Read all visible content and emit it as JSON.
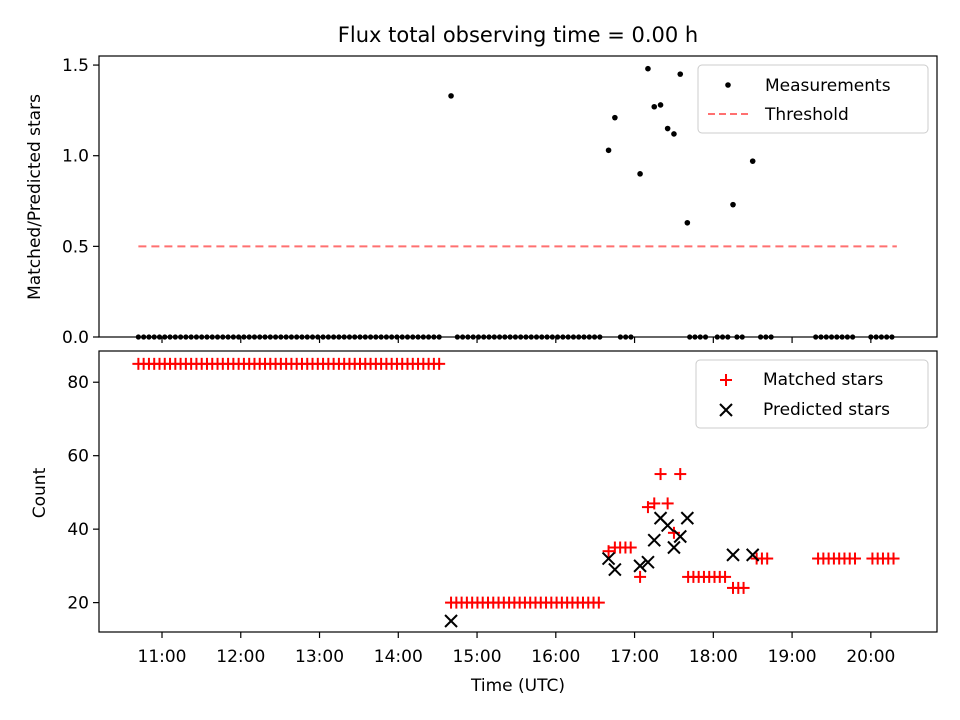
{
  "chart_data": [
    {
      "type": "scatter",
      "title": "Flux total observing time = 0.00 h",
      "ylabel": "Matched/Predicted stars",
      "ylim": [
        0,
        1.55
      ],
      "yticks": [
        0.0,
        0.5,
        1.0,
        1.5
      ],
      "ytick_labels": [
        "0.0",
        "0.5",
        "1.0",
        "1.5"
      ],
      "xlim": [
        10.2,
        20.84
      ],
      "legend": {
        "placement": "top-right",
        "entries": [
          {
            "label": "Measurements",
            "marker": "dot",
            "color": "#000000"
          },
          {
            "label": "Threshold",
            "marker": "dashed-line",
            "color": "#ff7070"
          }
        ]
      },
      "threshold": {
        "name": "Threshold",
        "value": 0.5,
        "x_start": 10.7,
        "x_end": 20.33,
        "color": "#ff7070"
      },
      "series": [
        {
          "name": "Measurements",
          "color": "#000000",
          "zero_ranges": [
            [
              10.7,
              14.58
            ],
            [
              14.75,
              16.6
            ],
            [
              16.82,
              16.98
            ],
            [
              17.7,
              17.95
            ],
            [
              18.05,
              18.2
            ],
            [
              18.3,
              18.37
            ],
            [
              18.6,
              18.75
            ],
            [
              19.3,
              19.82
            ],
            [
              20.0,
              20.33
            ]
          ],
          "zero_step": 0.067,
          "points": [
            [
              14.67,
              1.33
            ],
            [
              16.67,
              1.03
            ],
            [
              16.75,
              1.21
            ],
            [
              17.07,
              0.9
            ],
            [
              17.17,
              1.48
            ],
            [
              17.25,
              1.27
            ],
            [
              17.33,
              1.28
            ],
            [
              17.42,
              1.15
            ],
            [
              17.5,
              1.12
            ],
            [
              17.58,
              1.45
            ],
            [
              17.67,
              0.63
            ],
            [
              18.25,
              0.73
            ],
            [
              18.5,
              0.97
            ]
          ]
        }
      ]
    },
    {
      "type": "scatter",
      "xlabel": "Time (UTC)",
      "ylabel": "Count",
      "ylim": [
        12,
        88.5
      ],
      "yticks": [
        20,
        40,
        60,
        80
      ],
      "ytick_labels": [
        "20",
        "40",
        "60",
        "80"
      ],
      "xlim": [
        10.2,
        20.84
      ],
      "xticks": [
        11,
        12,
        13,
        14,
        15,
        16,
        17,
        18,
        19,
        20
      ],
      "xtick_labels": [
        "11:00",
        "12:00",
        "13:00",
        "14:00",
        "15:00",
        "16:00",
        "17:00",
        "18:00",
        "19:00",
        "20:00"
      ],
      "legend": {
        "placement": "top-right",
        "entries": [
          {
            "label": "Matched stars",
            "marker": "plus",
            "color": "#ff0000"
          },
          {
            "label": "Predicted stars",
            "marker": "x",
            "color": "#000000"
          }
        ]
      },
      "series": [
        {
          "name": "Matched stars",
          "color": "#ff0000",
          "marker": "plus",
          "ranges": [
            {
              "from": 10.7,
              "to": 14.58,
              "value": 85
            },
            {
              "from": 14.67,
              "to": 16.6,
              "value": 20
            },
            {
              "from": 16.75,
              "to": 16.98,
              "value": 35
            },
            {
              "from": 17.68,
              "to": 18.15,
              "value": 27
            },
            {
              "from": 18.25,
              "to": 18.4,
              "value": 24
            },
            {
              "from": 18.55,
              "to": 18.75,
              "value": 32
            },
            {
              "from": 19.33,
              "to": 19.82,
              "value": 32
            },
            {
              "from": 20.02,
              "to": 20.33,
              "value": 32
            }
          ],
          "range_step": 0.067,
          "points": [
            [
              16.67,
              34
            ],
            [
              17.07,
              27
            ],
            [
              17.17,
              46
            ],
            [
              17.25,
              47
            ],
            [
              17.33,
              55
            ],
            [
              17.42,
              47
            ],
            [
              17.5,
              39
            ],
            [
              17.58,
              55
            ]
          ]
        },
        {
          "name": "Predicted stars",
          "color": "#000000",
          "marker": "x",
          "points": [
            [
              14.67,
              15
            ],
            [
              16.67,
              32
            ],
            [
              16.75,
              29
            ],
            [
              17.07,
              30
            ],
            [
              17.17,
              31
            ],
            [
              17.25,
              37
            ],
            [
              17.33,
              43
            ],
            [
              17.42,
              41
            ],
            [
              17.5,
              35
            ],
            [
              17.58,
              38
            ],
            [
              17.67,
              43
            ],
            [
              18.25,
              33
            ],
            [
              18.5,
              33
            ]
          ]
        }
      ]
    }
  ]
}
